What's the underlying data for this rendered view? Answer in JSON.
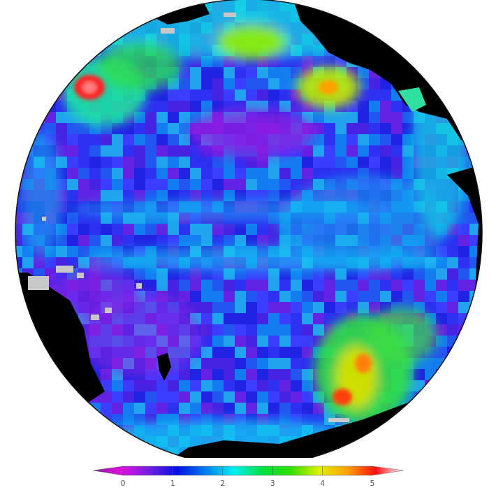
{
  "map": {
    "projection": "orthographic",
    "land_color": "#000000",
    "sea_ice_color": "#c8c8c8"
  },
  "colorbar": {
    "ticks": [
      "0",
      "1",
      "2",
      "3",
      "4",
      "5"
    ],
    "min": 0,
    "max": 5,
    "extend": "both",
    "colors": [
      "#8a1a9a",
      "#e010e0",
      "#7020e0",
      "#0010e0",
      "#0080f0",
      "#00f0f0",
      "#00e040",
      "#30e000",
      "#e0f000",
      "#ffa000",
      "#ff1010",
      "#ffffff"
    ]
  }
}
